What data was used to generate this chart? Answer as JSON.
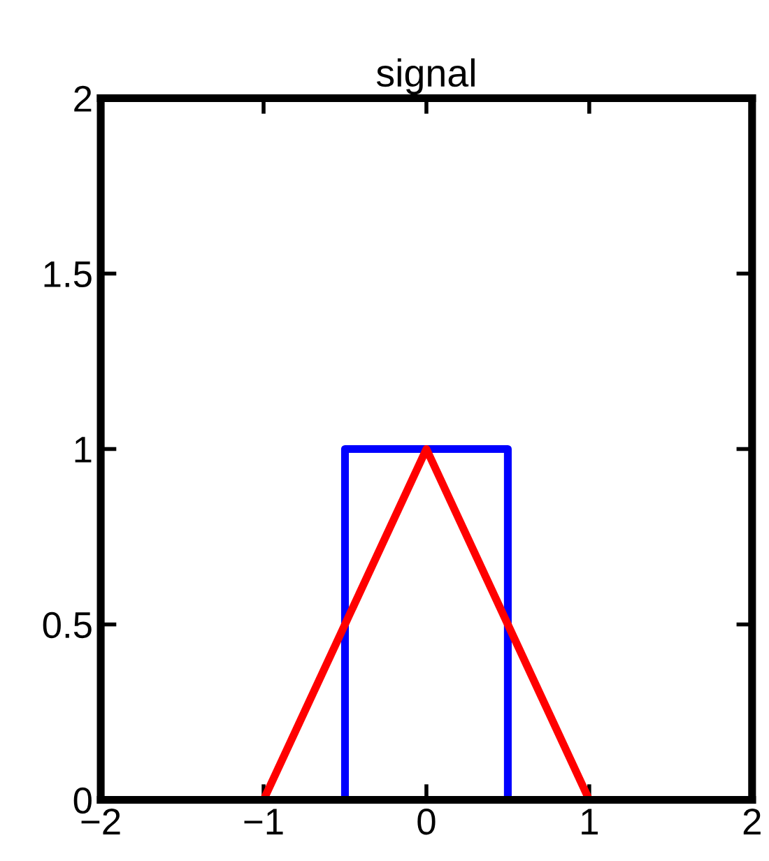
{
  "chart_data": {
    "type": "line",
    "title": "signal",
    "series": [
      {
        "color": "#0000ff",
        "x": [
          -2,
          -0.5,
          -0.5,
          0.5,
          0.5,
          2
        ],
        "values": [
          0,
          0,
          1,
          1,
          0,
          0
        ]
      },
      {
        "color": "#ff0000",
        "x": [
          -2,
          -1,
          0,
          1,
          2
        ],
        "values": [
          0,
          0,
          1,
          0,
          0
        ]
      }
    ],
    "xlim": [
      -2,
      2
    ],
    "ylim": [
      0,
      2
    ],
    "xticks": [
      {
        "value": -2,
        "label": "−2"
      },
      {
        "value": -1,
        "label": "−1"
      },
      0,
      1,
      2
    ],
    "yticks": [
      0,
      0.5,
      1,
      1.5,
      2
    ],
    "grid": false,
    "marker": "none",
    "line_style": "solid"
  }
}
